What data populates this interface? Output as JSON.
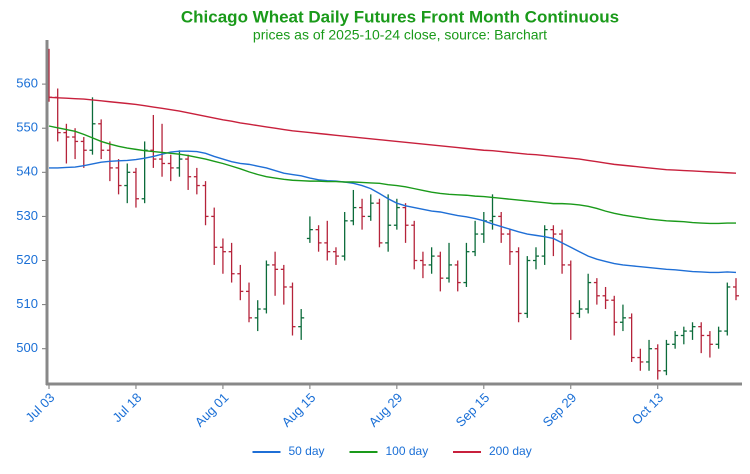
{
  "chart_data": {
    "type": "ohlc",
    "title": "Chicago Wheat Daily Futures Front Month Continuous",
    "subtitle": "prices as of 2025-10-24 close, source: Barchart",
    "categories": [
      "Jul 03",
      null,
      null,
      null,
      null,
      null,
      null,
      null,
      null,
      null,
      "Jul 18",
      null,
      null,
      null,
      null,
      null,
      null,
      null,
      null,
      null,
      "Aug 01",
      null,
      null,
      null,
      null,
      null,
      null,
      null,
      null,
      null,
      "Aug 15",
      null,
      null,
      null,
      null,
      null,
      null,
      null,
      null,
      null,
      "Aug 29",
      null,
      null,
      null,
      null,
      null,
      null,
      null,
      null,
      null,
      "Sep 15",
      null,
      null,
      null,
      null,
      null,
      null,
      null,
      null,
      null,
      "Sep 29",
      null,
      null,
      null,
      null,
      null,
      null,
      null,
      null,
      null,
      "Oct 13",
      null,
      null,
      null,
      null,
      null,
      null,
      null,
      null,
      null
    ],
    "open": [
      563,
      557,
      549,
      548,
      547,
      545,
      551,
      545,
      541,
      537,
      540,
      534,
      545,
      543,
      542,
      541,
      543,
      539,
      537,
      530,
      523,
      522,
      517,
      513,
      507,
      509,
      519,
      518,
      514,
      505,
      525,
      527,
      524,
      522,
      521,
      529,
      532,
      530,
      533,
      524,
      528,
      532,
      528,
      520,
      519,
      521,
      516,
      519,
      515,
      522,
      526,
      529,
      530,
      526,
      522,
      508,
      520,
      521,
      527,
      526,
      519,
      508,
      509,
      515,
      512,
      511,
      506,
      507,
      498,
      497,
      500,
      495,
      501,
      503,
      504,
      505,
      503,
      501,
      504,
      514
    ],
    "high": [
      568,
      559,
      551,
      550,
      548,
      557,
      552,
      547,
      543,
      542,
      541,
      547,
      553,
      551,
      544,
      545,
      544,
      541,
      538,
      532,
      525,
      524,
      519,
      515,
      511,
      520,
      522,
      519,
      515,
      509,
      530,
      528,
      529,
      523,
      531,
      536,
      534,
      535,
      534,
      535,
      534,
      533,
      529,
      522,
      523,
      522,
      524,
      520,
      524,
      529,
      531,
      535,
      531,
      527,
      523,
      521,
      523,
      528,
      528,
      527,
      520,
      511,
      517,
      516,
      514,
      512,
      510,
      508,
      500,
      502,
      501,
      502,
      504,
      505,
      506,
      506,
      504,
      505,
      515,
      516
    ],
    "low": [
      556,
      547,
      542,
      543,
      541,
      544,
      543,
      538,
      535,
      533,
      532,
      533,
      541,
      539,
      538,
      539,
      536,
      535,
      528,
      519,
      517,
      515,
      511,
      506,
      504,
      508,
      512,
      510,
      503,
      502,
      524,
      522,
      520,
      519,
      520,
      528,
      527,
      529,
      523,
      522,
      527,
      524,
      518,
      516,
      517,
      513,
      515,
      513,
      514,
      521,
      524,
      527,
      524,
      519,
      506,
      507,
      518,
      519,
      521,
      517,
      502,
      507,
      508,
      510,
      509,
      503,
      504,
      497,
      495,
      495,
      493,
      494,
      500,
      501,
      502,
      499,
      498,
      500,
      503,
      511
    ],
    "close": [
      557,
      549,
      548,
      547,
      545,
      551,
      545,
      541,
      537,
      540,
      534,
      545,
      543,
      542,
      541,
      543,
      539,
      537,
      530,
      523,
      522,
      517,
      513,
      507,
      509,
      519,
      518,
      514,
      505,
      507,
      527,
      524,
      522,
      521,
      529,
      532,
      530,
      533,
      524,
      528,
      532,
      528,
      520,
      519,
      521,
      516,
      519,
      515,
      522,
      526,
      529,
      530,
      526,
      522,
      508,
      520,
      521,
      527,
      526,
      519,
      508,
      509,
      515,
      512,
      511,
      506,
      507,
      498,
      497,
      500,
      495,
      501,
      503,
      504,
      505,
      503,
      501,
      504,
      514,
      512
    ],
    "up_color": "#0b6b3a",
    "down_color": "#b5233a",
    "series": [
      {
        "name": "50 day",
        "color": "#1f6fd6",
        "values": [
          541,
          541,
          541.1,
          541.2,
          541.5,
          541.9,
          542.3,
          542.5,
          542.6,
          542.7,
          542.9,
          543.2,
          543.6,
          544.1,
          544.6,
          544.8,
          544.8,
          544.7,
          544.3,
          543.6,
          543,
          542.4,
          542,
          541.8,
          541.4,
          541,
          540.4,
          539.8,
          539.5,
          539.2,
          538.7,
          538.3,
          538.1,
          538,
          537.8,
          537.5,
          537,
          536.3,
          535.2,
          534,
          533,
          532.4,
          532,
          531.6,
          531.2,
          531,
          530.6,
          530.2,
          529.9,
          529.5,
          529,
          528.3,
          527.7,
          527.1,
          526.5,
          526,
          525.7,
          525.4,
          525,
          524,
          523,
          522,
          521,
          520.3,
          519.8,
          519.3,
          519,
          518.8,
          518.6,
          518.4,
          518.2,
          518,
          517.9,
          517.7,
          517.5,
          517.4,
          517.3,
          517.3,
          517.4,
          517.3
        ]
      },
      {
        "name": "100 day",
        "color": "#1a9a1a",
        "values": [
          550.5,
          550.1,
          549.7,
          549.3,
          548.6,
          547.8,
          547,
          546.4,
          545.9,
          545.5,
          545.2,
          544.9,
          544.7,
          544.5,
          544.3,
          544.1,
          543.8,
          543.4,
          543,
          542.5,
          542,
          541.4,
          540.8,
          540.1,
          539.5,
          539,
          538.7,
          538.4,
          538.2,
          538.1,
          538,
          538,
          537.9,
          537.9,
          537.8,
          537.8,
          537.7,
          537.6,
          537.5,
          537.2,
          537,
          536.7,
          536.3,
          535.9,
          535.5,
          535.2,
          535,
          534.9,
          534.8,
          534.6,
          534.5,
          534.3,
          534.1,
          533.9,
          533.7,
          533.5,
          533.3,
          533.1,
          532.9,
          532.9,
          532.8,
          532.6,
          532.3,
          531.8,
          531.2,
          530.7,
          530.3,
          530,
          529.7,
          529.4,
          529.2,
          529,
          528.9,
          528.8,
          528.6,
          528.5,
          528.4,
          528.4,
          528.5,
          528.5
        ]
      },
      {
        "name": "200 day",
        "color": "#c8203c",
        "values": [
          557,
          556.9,
          556.8,
          556.7,
          556.6,
          556.4,
          556.2,
          556,
          555.8,
          555.6,
          555.4,
          555.1,
          554.8,
          554.5,
          554.2,
          553.9,
          553.5,
          553.1,
          552.7,
          552.3,
          551.9,
          551.6,
          551.2,
          550.9,
          550.6,
          550.3,
          550,
          549.7,
          549.4,
          549.2,
          549,
          548.8,
          548.6,
          548.4,
          548.2,
          548,
          547.8,
          547.6,
          547.4,
          547.2,
          547,
          546.8,
          546.6,
          546.4,
          546.2,
          546,
          545.8,
          545.6,
          545.4,
          545.2,
          545,
          544.9,
          544.7,
          544.5,
          544.3,
          544.1,
          544,
          543.8,
          543.6,
          543.4,
          543.2,
          543,
          542.7,
          542.4,
          542.1,
          541.8,
          541.6,
          541.4,
          541.2,
          541,
          540.8,
          540.6,
          540.5,
          540.4,
          540.3,
          540.2,
          540.1,
          540,
          539.9,
          539.8
        ]
      }
    ],
    "ylim": [
      492,
      570
    ],
    "yticks": [
      500,
      510,
      520,
      530,
      540,
      550,
      560
    ],
    "legend": "lower center"
  }
}
